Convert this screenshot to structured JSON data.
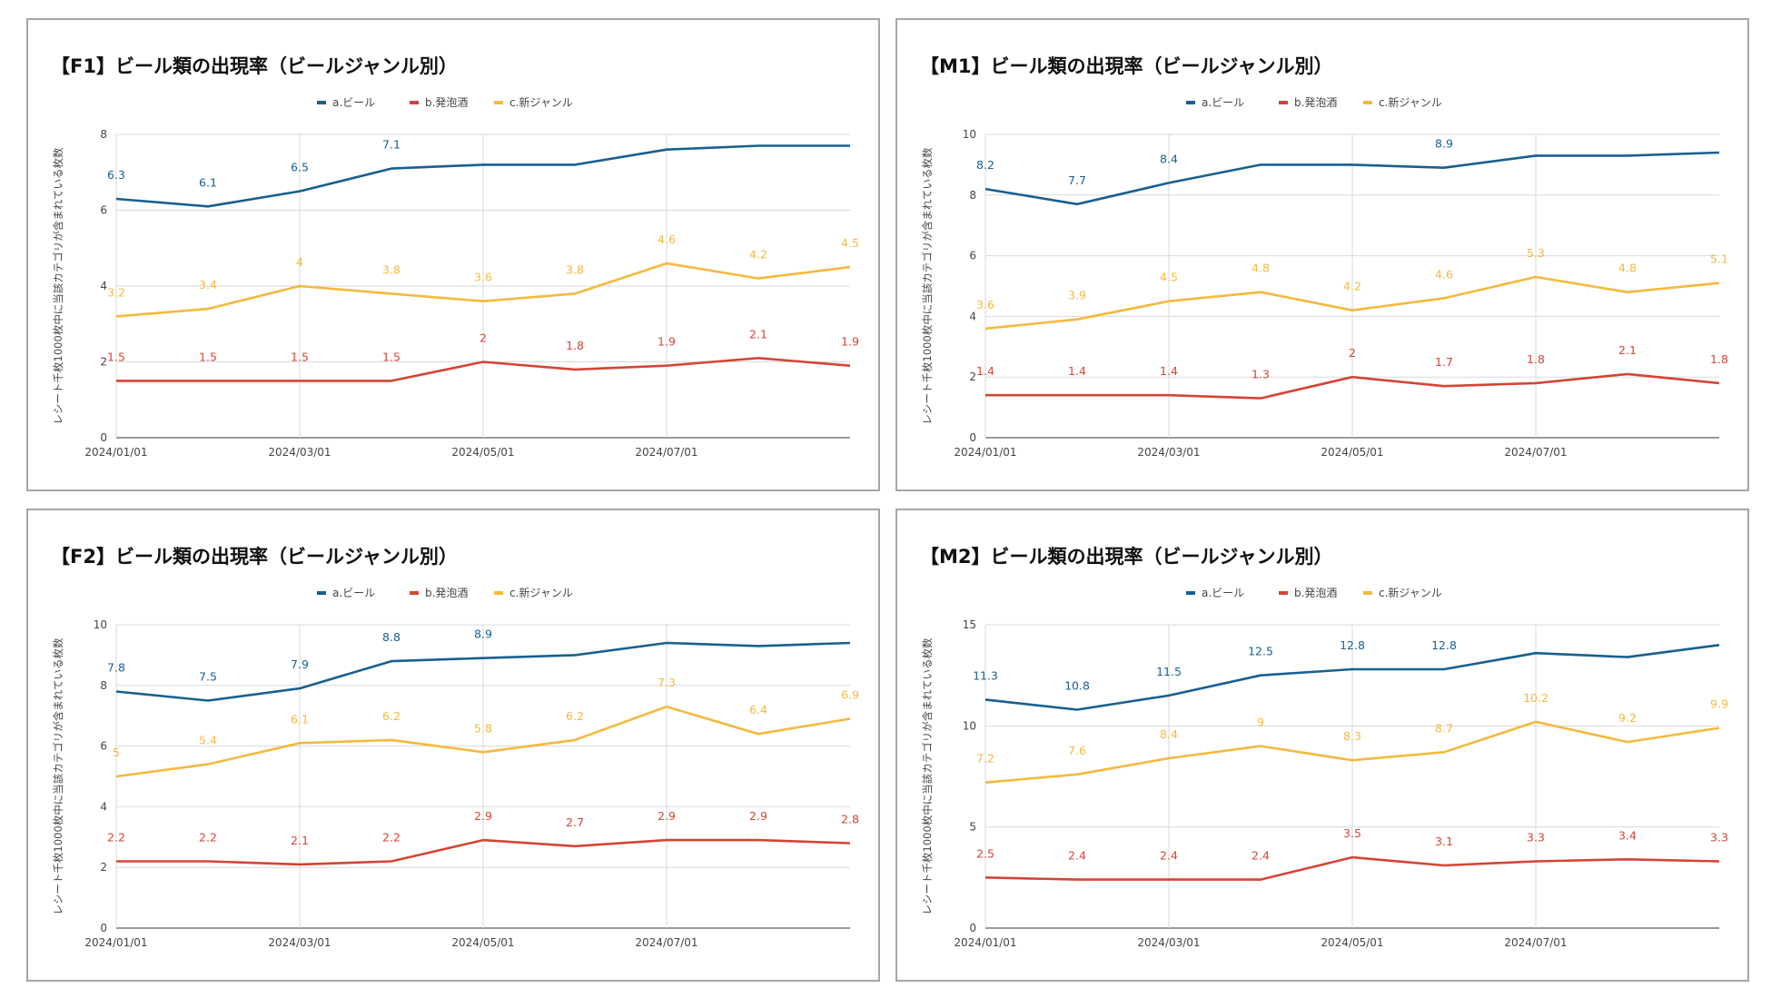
{
  "colors": {
    "beer": "#17608f",
    "happoshu": "#d34535",
    "newgenre": "#f4b93d",
    "grid": "#d9d9d9",
    "axis": "#333333",
    "title": "#111111",
    "tick": "#444444"
  },
  "charts": [
    {
      "title": "【F1】ビール類の出現率（ビールジャンル別）",
      "ylabel": "レシート千枚1000枚中に当該カテゴリが含まれている枚数",
      "legend": [
        "a.ビール",
        "b.発泡酒",
        "c.新ジャンル"
      ],
      "x_ticks": [
        "2024/01/01",
        "2024/03/01",
        "2024/05/01",
        "2024/07/01"
      ],
      "y_ticks": [
        "0",
        "2",
        "4",
        "6",
        "8"
      ],
      "x_labels": [
        "2024/01/01",
        "2024/02/01",
        "2024/03/01",
        "2024/04/01",
        "2024/05/01",
        "2024/06/01",
        "2024/07/01",
        "2024/08/01",
        "2024/09/01"
      ],
      "ylim": [
        0,
        8
      ],
      "series": [
        {
          "name": "a.ビール",
          "values": [
            6.3,
            6.1,
            6.5,
            7.1,
            7.2,
            7.2,
            7.6,
            7.7,
            7.7
          ],
          "labels": [
            "6.3",
            "6.1",
            "6.5",
            "7.1",
            "",
            "",
            "",
            "",
            ""
          ]
        },
        {
          "name": "b.発泡酒",
          "values": [
            1.5,
            1.5,
            1.5,
            1.5,
            2,
            1.8,
            1.9,
            2.1,
            1.9
          ],
          "labels": [
            "1.5",
            "1.5",
            "1.5",
            "1.5",
            "2",
            "1.8",
            "1.9",
            "2.1",
            "1.9"
          ]
        },
        {
          "name": "c.新ジャンル",
          "values": [
            3.2,
            3.4,
            4,
            3.8,
            3.6,
            3.8,
            4.6,
            4.2,
            4.5
          ],
          "labels": [
            "3.2",
            "3.4",
            "4",
            "3.8",
            "3.6",
            "3.8",
            "4.6",
            "4.2",
            "4.5"
          ]
        }
      ]
    },
    {
      "title": "【M1】ビール類の出現率（ビールジャンル別）",
      "ylabel": "レシート千枚1000枚中に当該カテゴリが含まれている枚数",
      "legend": [
        "a.ビール",
        "b.発泡酒",
        "c.新ジャンル"
      ],
      "x_ticks": [
        "2024/01/01",
        "2024/03/01",
        "2024/05/01",
        "2024/07/01"
      ],
      "y_ticks": [
        "0",
        "2",
        "4",
        "6",
        "8",
        "10"
      ],
      "x_labels": [
        "2024/01/01",
        "2024/02/01",
        "2024/03/01",
        "2024/04/01",
        "2024/05/01",
        "2024/06/01",
        "2024/07/01",
        "2024/08/01",
        "2024/09/01"
      ],
      "ylim": [
        0,
        10
      ],
      "series": [
        {
          "name": "a.ビール",
          "values": [
            8.2,
            7.7,
            8.4,
            9.0,
            9.0,
            8.9,
            9.3,
            9.3,
            9.4
          ],
          "labels": [
            "8.2",
            "7.7",
            "8.4",
            "",
            "",
            "8.9",
            "",
            "",
            ""
          ]
        },
        {
          "name": "b.発泡酒",
          "values": [
            1.4,
            1.4,
            1.4,
            1.3,
            2,
            1.7,
            1.8,
            2.1,
            1.8
          ],
          "labels": [
            "1.4",
            "1.4",
            "1.4",
            "1.3",
            "2",
            "1.7",
            "1.8",
            "2.1",
            "1.8"
          ]
        },
        {
          "name": "c.新ジャンル",
          "values": [
            3.6,
            3.9,
            4.5,
            4.8,
            4.2,
            4.6,
            5.3,
            4.8,
            5.1
          ],
          "labels": [
            "3.6",
            "3.9",
            "4.5",
            "4.8",
            "4.2",
            "4.6",
            "5.3",
            "4.8",
            "5.1"
          ]
        }
      ]
    },
    {
      "title": "【F2】ビール類の出現率（ビールジャンル別）",
      "ylabel": "レシート千枚1000枚中に当該カテゴリが含まれている枚数",
      "legend": [
        "a.ビール",
        "b.発泡酒",
        "c.新ジャンル"
      ],
      "x_ticks": [
        "2024/01/01",
        "2024/03/01",
        "2024/05/01",
        "2024/07/01"
      ],
      "y_ticks": [
        "0",
        "2",
        "4",
        "6",
        "8",
        "10"
      ],
      "x_labels": [
        "2024/01/01",
        "2024/02/01",
        "2024/03/01",
        "2024/04/01",
        "2024/05/01",
        "2024/06/01",
        "2024/07/01",
        "2024/08/01",
        "2024/09/01"
      ],
      "ylim": [
        0,
        10
      ],
      "series": [
        {
          "name": "a.ビール",
          "values": [
            7.8,
            7.5,
            7.9,
            8.8,
            8.9,
            9.0,
            9.4,
            9.3,
            9.4
          ],
          "labels": [
            "7.8",
            "7.5",
            "7.9",
            "8.8",
            "8.9",
            "",
            "",
            "",
            ""
          ]
        },
        {
          "name": "b.発泡酒",
          "values": [
            2.2,
            2.2,
            2.1,
            2.2,
            2.9,
            2.7,
            2.9,
            2.9,
            2.8
          ],
          "labels": [
            "2.2",
            "2.2",
            "2.1",
            "2.2",
            "2.9",
            "2.7",
            "2.9",
            "2.9",
            "2.8"
          ]
        },
        {
          "name": "c.新ジャンル",
          "values": [
            5,
            5.4,
            6.1,
            6.2,
            5.8,
            6.2,
            7.3,
            6.4,
            6.9
          ],
          "labels": [
            "5",
            "5.4",
            "6.1",
            "6.2",
            "5.8",
            "6.2",
            "7.3",
            "6.4",
            "6.9"
          ]
        }
      ]
    },
    {
      "title": "【M2】ビール類の出現率（ビールジャンル別）",
      "ylabel": "レシート千枚1000枚中に当該カテゴリが含まれている枚数",
      "legend": [
        "a.ビール",
        "b.発泡酒",
        "c.新ジャンル"
      ],
      "x_ticks": [
        "2024/01/01",
        "2024/03/01",
        "2024/05/01",
        "2024/07/01"
      ],
      "y_ticks": [
        "0",
        "5",
        "10",
        "15"
      ],
      "x_labels": [
        "2024/01/01",
        "2024/02/01",
        "2024/03/01",
        "2024/04/01",
        "2024/05/01",
        "2024/06/01",
        "2024/07/01",
        "2024/08/01",
        "2024/09/01"
      ],
      "ylim": [
        0,
        15
      ],
      "series": [
        {
          "name": "a.ビール",
          "values": [
            11.3,
            10.8,
            11.5,
            12.5,
            12.8,
            12.8,
            13.6,
            13.4,
            14.0
          ],
          "labels": [
            "11.3",
            "10.8",
            "11.5",
            "12.5",
            "12.8",
            "12.8",
            "",
            "",
            ""
          ]
        },
        {
          "name": "b.発泡酒",
          "values": [
            2.5,
            2.4,
            2.4,
            2.4,
            3.5,
            3.1,
            3.3,
            3.4,
            3.3
          ],
          "labels": [
            "2.5",
            "2.4",
            "2.4",
            "2.4",
            "3.5",
            "3.1",
            "3.3",
            "3.4",
            "3.3"
          ]
        },
        {
          "name": "c.新ジャンル",
          "values": [
            7.2,
            7.6,
            8.4,
            9,
            8.3,
            8.7,
            10.2,
            9.2,
            9.9
          ],
          "labels": [
            "7.2",
            "7.6",
            "8.4",
            "9",
            "8.3",
            "8.7",
            "10.2",
            "9.2",
            "9.9"
          ]
        }
      ]
    }
  ],
  "chart_data": [
    {
      "type": "line",
      "title": "【F1】ビール類の出現率（ビールジャンル別）",
      "xlabel": "",
      "ylabel": "レシート千枚1000枚中に当該カテゴリが含まれている枚数",
      "x": [
        "2024/01/01",
        "2024/02/01",
        "2024/03/01",
        "2024/04/01",
        "2024/05/01",
        "2024/06/01",
        "2024/07/01",
        "2024/08/01",
        "2024/09/01"
      ],
      "ylim": [
        0,
        8
      ],
      "series": [
        {
          "name": "a.ビール",
          "values": [
            6.3,
            6.1,
            6.5,
            7.1,
            7.2,
            7.2,
            7.6,
            7.7,
            7.7
          ]
        },
        {
          "name": "b.発泡酒",
          "values": [
            1.5,
            1.5,
            1.5,
            1.5,
            2,
            1.8,
            1.9,
            2.1,
            1.9
          ]
        },
        {
          "name": "c.新ジャンル",
          "values": [
            3.2,
            3.4,
            4,
            3.8,
            3.6,
            3.8,
            4.6,
            4.2,
            4.5
          ]
        }
      ]
    },
    {
      "type": "line",
      "title": "【M1】ビール類の出現率（ビールジャンル別）",
      "xlabel": "",
      "ylabel": "レシート千枚1000枚中に当該カテゴリが含まれている枚数",
      "x": [
        "2024/01/01",
        "2024/02/01",
        "2024/03/01",
        "2024/04/01",
        "2024/05/01",
        "2024/06/01",
        "2024/07/01",
        "2024/08/01",
        "2024/09/01"
      ],
      "ylim": [
        0,
        10
      ],
      "series": [
        {
          "name": "a.ビール",
          "values": [
            8.2,
            7.7,
            8.4,
            9.0,
            9.0,
            8.9,
            9.3,
            9.3,
            9.4
          ]
        },
        {
          "name": "b.発泡酒",
          "values": [
            1.4,
            1.4,
            1.4,
            1.3,
            2,
            1.7,
            1.8,
            2.1,
            1.8
          ]
        },
        {
          "name": "c.新ジャンル",
          "values": [
            3.6,
            3.9,
            4.5,
            4.8,
            4.2,
            4.6,
            5.3,
            4.8,
            5.1
          ]
        }
      ]
    },
    {
      "type": "line",
      "title": "【F2】ビール類の出現率（ビールジャンル別）",
      "xlabel": "",
      "ylabel": "レシート千枚1000枚中に当該カテゴリが含まれている枚数",
      "x": [
        "2024/01/01",
        "2024/02/01",
        "2024/03/01",
        "2024/04/01",
        "2024/05/01",
        "2024/06/01",
        "2024/07/01",
        "2024/08/01",
        "2024/09/01"
      ],
      "ylim": [
        0,
        10
      ],
      "series": [
        {
          "name": "a.ビール",
          "values": [
            7.8,
            7.5,
            7.9,
            8.8,
            8.9,
            9.0,
            9.4,
            9.3,
            9.4
          ]
        },
        {
          "name": "b.発泡酒",
          "values": [
            2.2,
            2.2,
            2.1,
            2.2,
            2.9,
            2.7,
            2.9,
            2.9,
            2.8
          ]
        },
        {
          "name": "c.新ジャンル",
          "values": [
            5,
            5.4,
            6.1,
            6.2,
            5.8,
            6.2,
            7.3,
            6.4,
            6.9
          ]
        }
      ]
    },
    {
      "type": "line",
      "title": "【M2】ビール類の出現率（ビールジャンル別）",
      "xlabel": "",
      "ylabel": "レシート千枚1000枚中に当該カテゴリが含まれている枚数",
      "x": [
        "2024/01/01",
        "2024/02/01",
        "2024/03/01",
        "2024/04/01",
        "2024/05/01",
        "2024/06/01",
        "2024/07/01",
        "2024/08/01",
        "2024/09/01"
      ],
      "ylim": [
        0,
        15
      ],
      "series": [
        {
          "name": "a.ビール",
          "values": [
            11.3,
            10.8,
            11.5,
            12.5,
            12.8,
            12.8,
            13.6,
            13.4,
            14.0
          ]
        },
        {
          "name": "b.発泡酒",
          "values": [
            2.5,
            2.4,
            2.4,
            2.4,
            3.5,
            3.1,
            3.3,
            3.4,
            3.3
          ]
        },
        {
          "name": "c.新ジャンル",
          "values": [
            7.2,
            7.6,
            8.4,
            9,
            8.3,
            8.7,
            10.2,
            9.2,
            9.9
          ]
        }
      ]
    }
  ]
}
